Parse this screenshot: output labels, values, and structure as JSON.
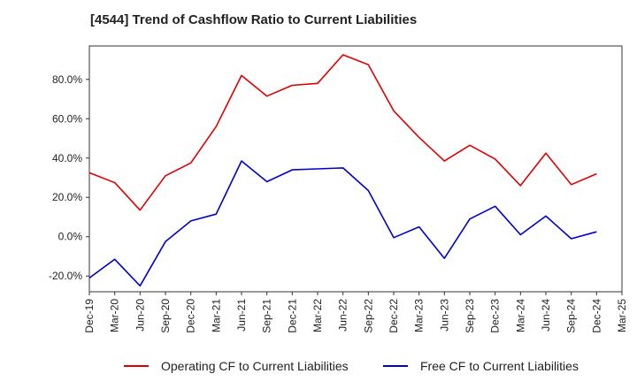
{
  "chart_data": {
    "type": "line",
    "title": "[4544]  Trend of Cashflow Ratio to Current Liabilities",
    "x": [
      "Dec-19",
      "Mar-20",
      "Jun-20",
      "Sep-20",
      "Dec-20",
      "Mar-21",
      "Jun-21",
      "Sep-21",
      "Dec-21",
      "Mar-22",
      "Jun-22",
      "Sep-22",
      "Dec-22",
      "Mar-23",
      "Jun-23",
      "Sep-23",
      "Dec-23",
      "Mar-24",
      "Jun-24",
      "Sep-24",
      "Dec-24",
      "Mar-25"
    ],
    "yticks": [
      -20,
      0,
      20,
      40,
      60,
      80
    ],
    "ytick_labels": [
      "-20.0%",
      "0.0%",
      "20.0%",
      "40.0%",
      "60.0%",
      "80.0%"
    ],
    "ylim": [
      -28,
      97
    ],
    "grid": true,
    "legend_position": "bottom",
    "series": [
      {
        "name": "Operating CF to Current Liabilities",
        "color": "#dd0000",
        "values": [
          32.5,
          27.5,
          13.5,
          31.0,
          37.5,
          56.0,
          82.0,
          71.5,
          77.0,
          78.0,
          92.5,
          87.5,
          64.0,
          50.5,
          38.5,
          46.5,
          39.5,
          26.0,
          42.5,
          26.5,
          32.0,
          null
        ]
      },
      {
        "name": "Free CF to Current Liabilities",
        "color": "#0000cc",
        "values": [
          -21.0,
          -11.5,
          -25.0,
          -2.5,
          8.0,
          11.5,
          38.5,
          28.0,
          34.0,
          34.5,
          35.0,
          23.5,
          -0.5,
          5.0,
          -11.0,
          9.0,
          15.5,
          1.0,
          10.5,
          -1.0,
          2.5,
          null
        ]
      }
    ]
  }
}
